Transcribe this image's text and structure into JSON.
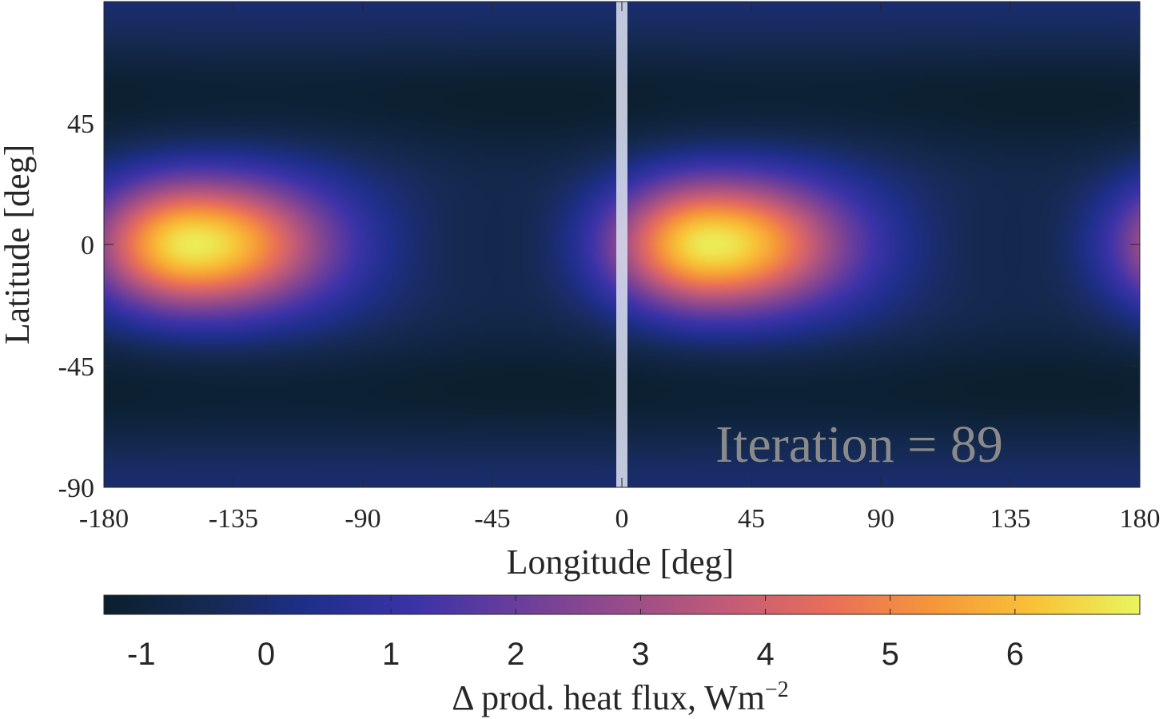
{
  "chart_data": {
    "type": "heatmap",
    "title": "",
    "xlabel": "Longitude [deg]",
    "ylabel": "Latitude [deg]",
    "xlim": [
      -180,
      180
    ],
    "ylim": [
      -90,
      90
    ],
    "xticks": [
      -180,
      -135,
      -90,
      -45,
      0,
      45,
      90,
      135,
      180
    ],
    "yticks": [
      -90,
      -45,
      0,
      45
    ],
    "annotation": "Iteration = 89",
    "marker_longitude": 0,
    "hotspots": [
      {
        "longitude": -150,
        "latitude": 0,
        "peak_value": 6.8
      },
      {
        "longitude": 30,
        "latitude": 0,
        "peak_value": 6.8
      }
    ],
    "colorbar": {
      "label_prefix": "Δ prod. heat flux, Wm",
      "label_exponent": "−2",
      "range": [
        -1.3,
        7.0
      ],
      "ticks": [
        -1,
        0,
        1,
        2,
        3,
        4,
        5,
        6
      ],
      "colormap": [
        "#0b1f2e",
        "#152a52",
        "#1f2f8c",
        "#3b33a8",
        "#6a3e9c",
        "#974c8a",
        "#c25b78",
        "#e86e5a",
        "#f6963a",
        "#f8c337",
        "#e9f55e"
      ]
    }
  }
}
